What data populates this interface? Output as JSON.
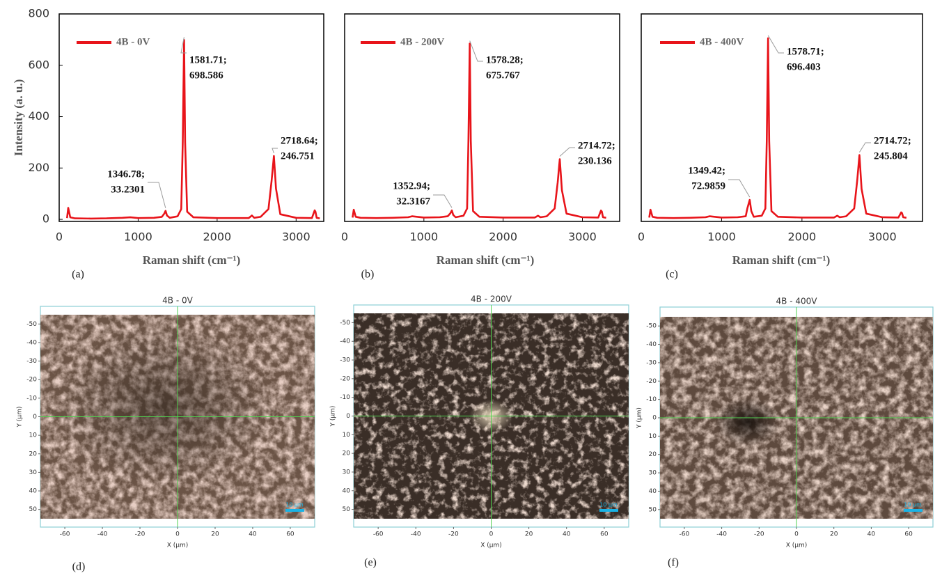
{
  "chart_data": [
    {
      "type": "line",
      "panel_label": "(a)",
      "ylabel": "Intensity (a. u.)",
      "xlabel": "Raman shift (cm⁻¹)",
      "xlim": [
        0,
        3350
      ],
      "xticks": [
        0,
        1000,
        2000,
        3000
      ],
      "ylim": [
        -8,
        800
      ],
      "yticks": [
        0,
        200,
        400,
        600,
        800
      ],
      "legend": "upper left",
      "series": [
        {
          "name": "4B - 0V",
          "color": "#e8141a",
          "x": [
            100,
            115,
            140,
            200,
            400,
            600,
            800,
            900,
            1000,
            1200,
            1300,
            1330,
            1346.78,
            1365,
            1400,
            1500,
            1545,
            1565,
            1581.71,
            1595,
            1620,
            1700,
            2000,
            2400,
            2440,
            2470,
            2550,
            2650,
            2690,
            2718.64,
            2745,
            2800,
            3000,
            3200,
            3235,
            3245,
            3260,
            3300
          ],
          "values": [
            5,
            45,
            8,
            4,
            3,
            4,
            6,
            8,
            5,
            6,
            10,
            22,
            33.2301,
            15,
            6,
            12,
            40,
            300,
            698.586,
            300,
            30,
            8,
            5,
            5,
            15,
            6,
            10,
            40,
            150,
            246.751,
            120,
            20,
            6,
            5,
            35,
            30,
            6,
            4
          ]
        }
      ],
      "annotations": [
        {
          "x": 1346.78,
          "y": 33.2301,
          "lines": [
            "1346.78;",
            "33.2301"
          ]
        },
        {
          "x": 1581.71,
          "y": 698.586,
          "lines": [
            "1581.71;",
            "698.586"
          ]
        },
        {
          "x": 2718.64,
          "y": 246.751,
          "lines": [
            "2718.64;",
            "246.751"
          ]
        }
      ]
    },
    {
      "type": "line",
      "panel_label": "(b)",
      "xlabel": "Raman shift (cm⁻¹)",
      "xlim": [
        0,
        3470
      ],
      "xticks": [
        0,
        1000,
        2000,
        3000
      ],
      "ylim": [
        -10,
        790
      ],
      "legend": "upper left",
      "series": [
        {
          "name": "4B - 200V",
          "color": "#e8141a",
          "x": [
            100,
            115,
            140,
            200,
            400,
            600,
            800,
            850,
            1000,
            1200,
            1300,
            1335,
            1352.94,
            1370,
            1400,
            1500,
            1545,
            1562,
            1578.28,
            1592,
            1620,
            1700,
            2000,
            2400,
            2440,
            2470,
            2550,
            2650,
            2688,
            2714.72,
            2742,
            2800,
            3000,
            3200,
            3235,
            3245,
            3260,
            3300
          ],
          "values": [
            5,
            35,
            8,
            4,
            3,
            4,
            6,
            10,
            5,
            6,
            10,
            22,
            32.3167,
            15,
            6,
            12,
            40,
            300,
            675.767,
            300,
            30,
            8,
            5,
            5,
            12,
            6,
            10,
            40,
            140,
            230.136,
            110,
            20,
            6,
            5,
            32,
            28,
            6,
            4
          ]
        }
      ],
      "annotations": [
        {
          "x": 1352.94,
          "y": 32.3167,
          "lines": [
            "1352.94;",
            "32.3167"
          ]
        },
        {
          "x": 1578.28,
          "y": 675.767,
          "lines": [
            "1578.28;",
            "675.767"
          ]
        },
        {
          "x": 2714.72,
          "y": 230.136,
          "lines": [
            "2714.72;",
            "230.136"
          ]
        }
      ]
    },
    {
      "type": "line",
      "panel_label": "(c)",
      "xlabel": "Raman shift (cm⁻¹)",
      "xlim": [
        0,
        3500
      ],
      "xticks": [
        0,
        1000,
        2000,
        3000
      ],
      "ylim": [
        -10,
        790
      ],
      "legend": "upper left",
      "series": [
        {
          "name": "4B - 400V",
          "color": "#e8141a",
          "x": [
            100,
            115,
            140,
            200,
            400,
            600,
            800,
            850,
            1000,
            1200,
            1300,
            1320,
            1349.42,
            1370,
            1400,
            1500,
            1545,
            1562,
            1578.71,
            1592,
            1620,
            1700,
            2000,
            2400,
            2440,
            2470,
            2550,
            2650,
            2688,
            2714.72,
            2742,
            2800,
            3000,
            3200,
            3235,
            3245,
            3260,
            3300
          ],
          "values": [
            5,
            35,
            8,
            4,
            3,
            4,
            6,
            10,
            5,
            6,
            10,
            40,
            72.9859,
            30,
            8,
            12,
            40,
            300,
            696.403,
            300,
            30,
            8,
            5,
            5,
            12,
            6,
            10,
            40,
            150,
            245.804,
            115,
            20,
            6,
            5,
            25,
            22,
            6,
            4
          ]
        }
      ],
      "annotations": [
        {
          "x": 1349.42,
          "y": 72.9859,
          "lines": [
            "1349.42;",
            "72.9859"
          ]
        },
        {
          "x": 1578.71,
          "y": 696.403,
          "lines": [
            "1578.71;",
            "696.403"
          ]
        },
        {
          "x": 2714.72,
          "y": 245.804,
          "lines": [
            "2714.72;",
            "245.804"
          ]
        }
      ]
    }
  ],
  "micrographs": [
    {
      "title": "4B - 0V",
      "panel_label": "(d)",
      "xlabel": "X (µm)",
      "ylabel": "Y (µm)",
      "xlim": [
        -73,
        73
      ],
      "ylim": [
        -55,
        55
      ],
      "xticks": [
        -60,
        -40,
        -20,
        0,
        20,
        40,
        60
      ],
      "yticks": [
        -50,
        -40,
        -30,
        -20,
        -10,
        0,
        10,
        20,
        30,
        40,
        50
      ],
      "scale_bar": "10 µm"
    },
    {
      "title": "4B - 200V",
      "panel_label": "(e)",
      "xlabel": "X (µm)",
      "ylabel": "Y (µm)",
      "xlim": [
        -73,
        73
      ],
      "ylim": [
        -55,
        55
      ],
      "xticks": [
        -60,
        -40,
        -20,
        0,
        20,
        40,
        60
      ],
      "yticks": [
        -50,
        -40,
        -30,
        -20,
        -10,
        0,
        10,
        20,
        30,
        40,
        50
      ],
      "scale_bar": "10 µm"
    },
    {
      "title": "4B - 400V",
      "panel_label": "(f)",
      "xlabel": "X (µm)",
      "ylabel": "Y (µm)",
      "xlim": [
        -73,
        73
      ],
      "ylim": [
        -55,
        55
      ],
      "xticks": [
        -60,
        -40,
        -20,
        0,
        20,
        40,
        60
      ],
      "yticks": [
        -50,
        -40,
        -30,
        -20,
        -10,
        0,
        10,
        20,
        30,
        40,
        50
      ],
      "scale_bar": "10 µm"
    }
  ]
}
